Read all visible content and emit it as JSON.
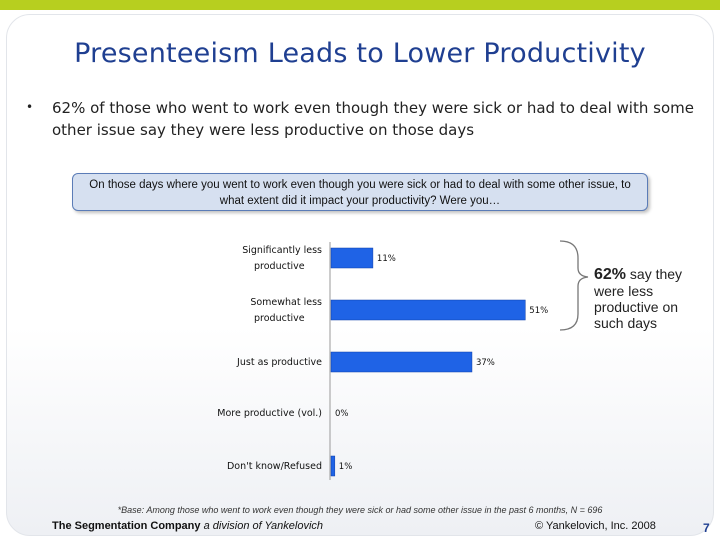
{
  "slide": {
    "title": "Presenteeism Leads to Lower Productivity",
    "bullet": "62% of those who went to work even though they were sick or had to deal with some other issue say they were less productive on those days",
    "question": "On those days where you went to work even though you were sick or had to deal with some other issue, to what extent did it impact your productivity? Were you…",
    "callout_pct": "62%",
    "callout_line1": "say they",
    "callout_rest": "were less productive on such days",
    "base_note": "*Base: Among those who went to work even though they were sick or had some other issue in the past 6 months, N = 696",
    "footer_company": "The Segmentation Company",
    "footer_division": "a division of Yankelovich",
    "footer_copyright": "© Yankelovich, Inc. 2008",
    "page_number": "7"
  },
  "colors": {
    "accent_bar": "#b7cf1f",
    "title": "#1f3f91",
    "bar": "#1f63e6",
    "question_box": "#d6e0f0"
  },
  "chart_data": {
    "type": "bar",
    "orientation": "horizontal",
    "categories": [
      [
        "Significantly less",
        "productive"
      ],
      [
        "Somewhat less",
        "productive"
      ],
      [
        "Just as productive"
      ],
      [
        "More productive (vol.)"
      ],
      [
        "Don't know/Refused"
      ]
    ],
    "values": [
      11,
      51,
      37,
      0,
      1
    ],
    "data_labels": [
      "11%",
      "51%",
      "37%",
      "0%",
      "1%"
    ],
    "title": "",
    "xlabel": "",
    "ylabel": "",
    "xlim": [
      0,
      60
    ],
    "grid": false,
    "legend": "none"
  }
}
